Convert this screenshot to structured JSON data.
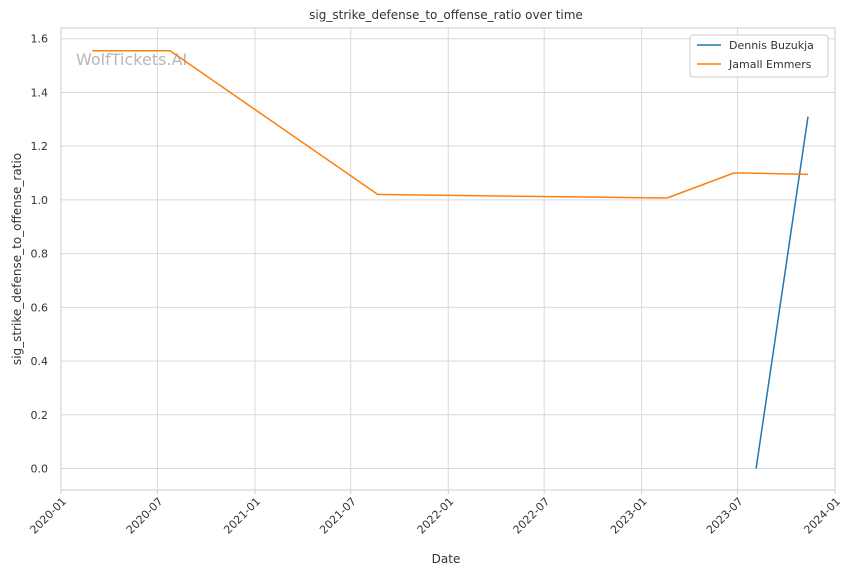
{
  "chart_data": {
    "type": "line",
    "title": "sig_strike_defense_to_offense_ratio over time",
    "xlabel": "Date",
    "ylabel": "sig_strike_defense_to_offense_ratio",
    "watermark": "WolfTickets.AI",
    "xlim": [
      "2020-01-01",
      "2024-01-01"
    ],
    "ylim": [
      -0.08,
      1.64
    ],
    "x_ticks": [
      "2020-01",
      "2020-07",
      "2021-01",
      "2021-07",
      "2022-01",
      "2022-07",
      "2023-01",
      "2023-07",
      "2024-01"
    ],
    "y_ticks": [
      0.0,
      0.2,
      0.4,
      0.6,
      0.8,
      1.0,
      1.2,
      1.4,
      1.6
    ],
    "grid": true,
    "legend_position": "top-right",
    "series": [
      {
        "name": "Dennis Buzukja",
        "color": "#1f77b4",
        "points": [
          {
            "x": "2023-08-05",
            "y": 0.0
          },
          {
            "x": "2023-11-11",
            "y": 1.31
          }
        ]
      },
      {
        "name": "Jamall Emmers",
        "color": "#ff7f0e",
        "points": [
          {
            "x": "2020-02-29",
            "y": 1.555
          },
          {
            "x": "2020-07-25",
            "y": 1.555
          },
          {
            "x": "2021-08-21",
            "y": 1.02
          },
          {
            "x": "2023-02-18",
            "y": 1.007
          },
          {
            "x": "2023-06-24",
            "y": 1.1
          },
          {
            "x": "2023-07-15",
            "y": 1.1
          },
          {
            "x": "2023-11-11",
            "y": 1.095
          }
        ]
      }
    ]
  }
}
